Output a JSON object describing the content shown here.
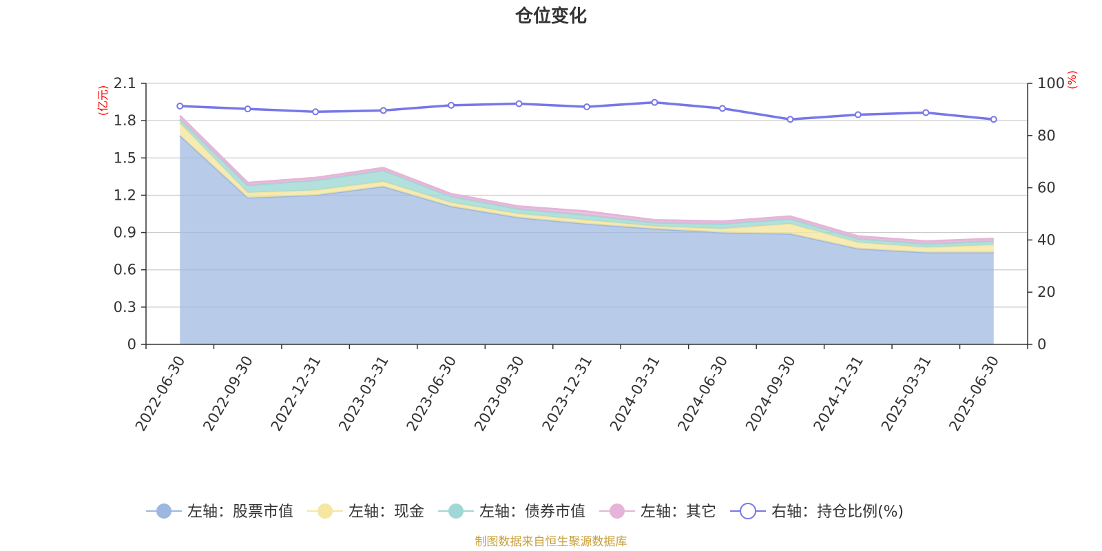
{
  "chart_data": {
    "type": "area",
    "title": "仓位变化",
    "source_note": "制图数据来自恒生聚源数据库",
    "x": [
      "2022-06-30",
      "2022-09-30",
      "2022-12-31",
      "2023-03-31",
      "2023-06-30",
      "2023-09-30",
      "2023-12-31",
      "2024-03-31",
      "2024-06-30",
      "2024-09-30",
      "2024-12-31",
      "2025-03-31",
      "2025-06-30"
    ],
    "left_axis": {
      "unit": "(亿元)",
      "ylim": [
        0,
        2.1
      ],
      "ticks": [
        "0",
        "0.3",
        "0.6",
        "0.9",
        "1.2",
        "1.5",
        "1.8",
        "2.1"
      ]
    },
    "right_axis": {
      "unit": "(%)",
      "ylim": [
        0,
        100
      ],
      "ticks": [
        "0",
        "20",
        "40",
        "60",
        "80",
        "100"
      ]
    },
    "grid": true,
    "legend_position": "bottom",
    "series": [
      {
        "name": "左轴：股票市值",
        "axis": "left",
        "stacked": true,
        "color": "#9db8e0",
        "values": [
          1.68,
          1.18,
          1.2,
          1.27,
          1.11,
          1.02,
          0.97,
          0.93,
          0.9,
          0.89,
          0.77,
          0.74,
          0.74
        ]
      },
      {
        "name": "左轴：现金",
        "axis": "left",
        "stacked": true,
        "color": "#f5e6a0",
        "values": [
          0.1,
          0.04,
          0.04,
          0.04,
          0.03,
          0.03,
          0.03,
          0.02,
          0.03,
          0.08,
          0.05,
          0.04,
          0.06
        ]
      },
      {
        "name": "左轴：债券市值",
        "axis": "left",
        "stacked": true,
        "color": "#9fd8d4",
        "values": [
          0.03,
          0.06,
          0.08,
          0.09,
          0.05,
          0.04,
          0.04,
          0.03,
          0.04,
          0.04,
          0.03,
          0.03,
          0.03
        ]
      },
      {
        "name": "左轴：其它",
        "axis": "left",
        "stacked": true,
        "color": "#e6b4d8",
        "values": [
          0.03,
          0.02,
          0.02,
          0.02,
          0.02,
          0.02,
          0.03,
          0.02,
          0.02,
          0.02,
          0.02,
          0.02,
          0.02
        ]
      },
      {
        "name": "右轴：持仓比例(%)",
        "axis": "right",
        "stacked": false,
        "color": "#7777e8",
        "values": [
          91.3,
          90.2,
          89.1,
          89.6,
          91.6,
          92.2,
          91.0,
          92.7,
          90.4,
          86.2,
          88.0,
          88.8,
          86.2
        ]
      }
    ]
  }
}
